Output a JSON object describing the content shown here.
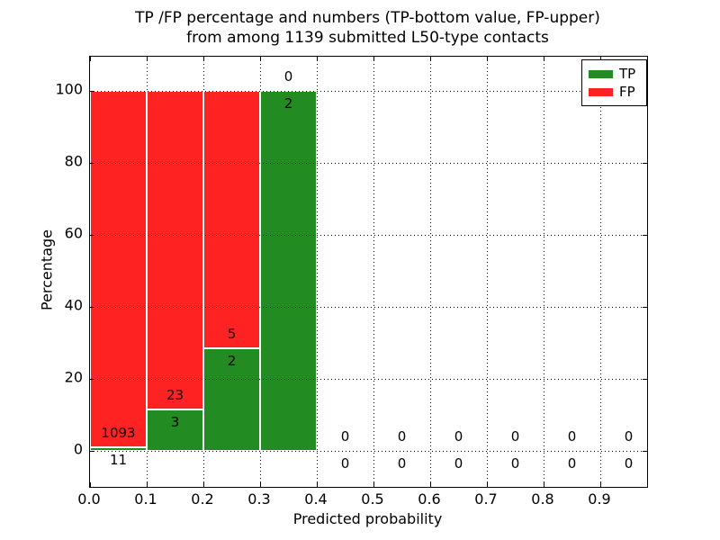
{
  "chart_data": {
    "type": "bar",
    "stacked": true,
    "title": "TP /FP percentage and numbers (TP-bottom value, FP-upper)\nfrom among 1139 submitted L50-type contacts",
    "total_submitted_contacts": 1139,
    "xlabel": "Predicted probability",
    "ylabel": "Percentage",
    "xlim": [
      0.0,
      0.98
    ],
    "ylim": [
      -10,
      110
    ],
    "grid": "dotted",
    "xticks": [
      "0.0",
      "0.1",
      "0.2",
      "0.3",
      "0.4",
      "0.5",
      "0.6",
      "0.7",
      "0.8",
      "0.9"
    ],
    "yticks": [
      0,
      20,
      40,
      60,
      80,
      100
    ],
    "legend": {
      "position": "upper right",
      "items": [
        {
          "label": "TP",
          "color": "#228b22"
        },
        {
          "label": "FP",
          "color": "#ff2222"
        }
      ]
    },
    "bins": [
      {
        "x0": 0.0,
        "x1": 0.1,
        "tp": 11,
        "fp": 1093,
        "tp_pct": 1.0,
        "fp_pct": 99.0
      },
      {
        "x0": 0.1,
        "x1": 0.2,
        "tp": 3,
        "fp": 23,
        "tp_pct": 11.5,
        "fp_pct": 88.5
      },
      {
        "x0": 0.2,
        "x1": 0.3,
        "tp": 2,
        "fp": 5,
        "tp_pct": 28.6,
        "fp_pct": 71.4
      },
      {
        "x0": 0.3,
        "x1": 0.4,
        "tp": 2,
        "fp": 0,
        "tp_pct": 100,
        "fp_pct": 0
      },
      {
        "x0": 0.4,
        "x1": 0.5,
        "tp": 0,
        "fp": 0,
        "tp_pct": 0,
        "fp_pct": 0
      },
      {
        "x0": 0.5,
        "x1": 0.6,
        "tp": 0,
        "fp": 0,
        "tp_pct": 0,
        "fp_pct": 0
      },
      {
        "x0": 0.6,
        "x1": 0.7,
        "tp": 0,
        "fp": 0,
        "tp_pct": 0,
        "fp_pct": 0
      },
      {
        "x0": 0.7,
        "x1": 0.8,
        "tp": 0,
        "fp": 0,
        "tp_pct": 0,
        "fp_pct": 0
      },
      {
        "x0": 0.8,
        "x1": 0.9,
        "tp": 0,
        "fp": 0,
        "tp_pct": 0,
        "fp_pct": 0
      },
      {
        "x0": 0.9,
        "x1": 1.0,
        "tp": 0,
        "fp": 0,
        "tp_pct": 0,
        "fp_pct": 0
      }
    ]
  }
}
